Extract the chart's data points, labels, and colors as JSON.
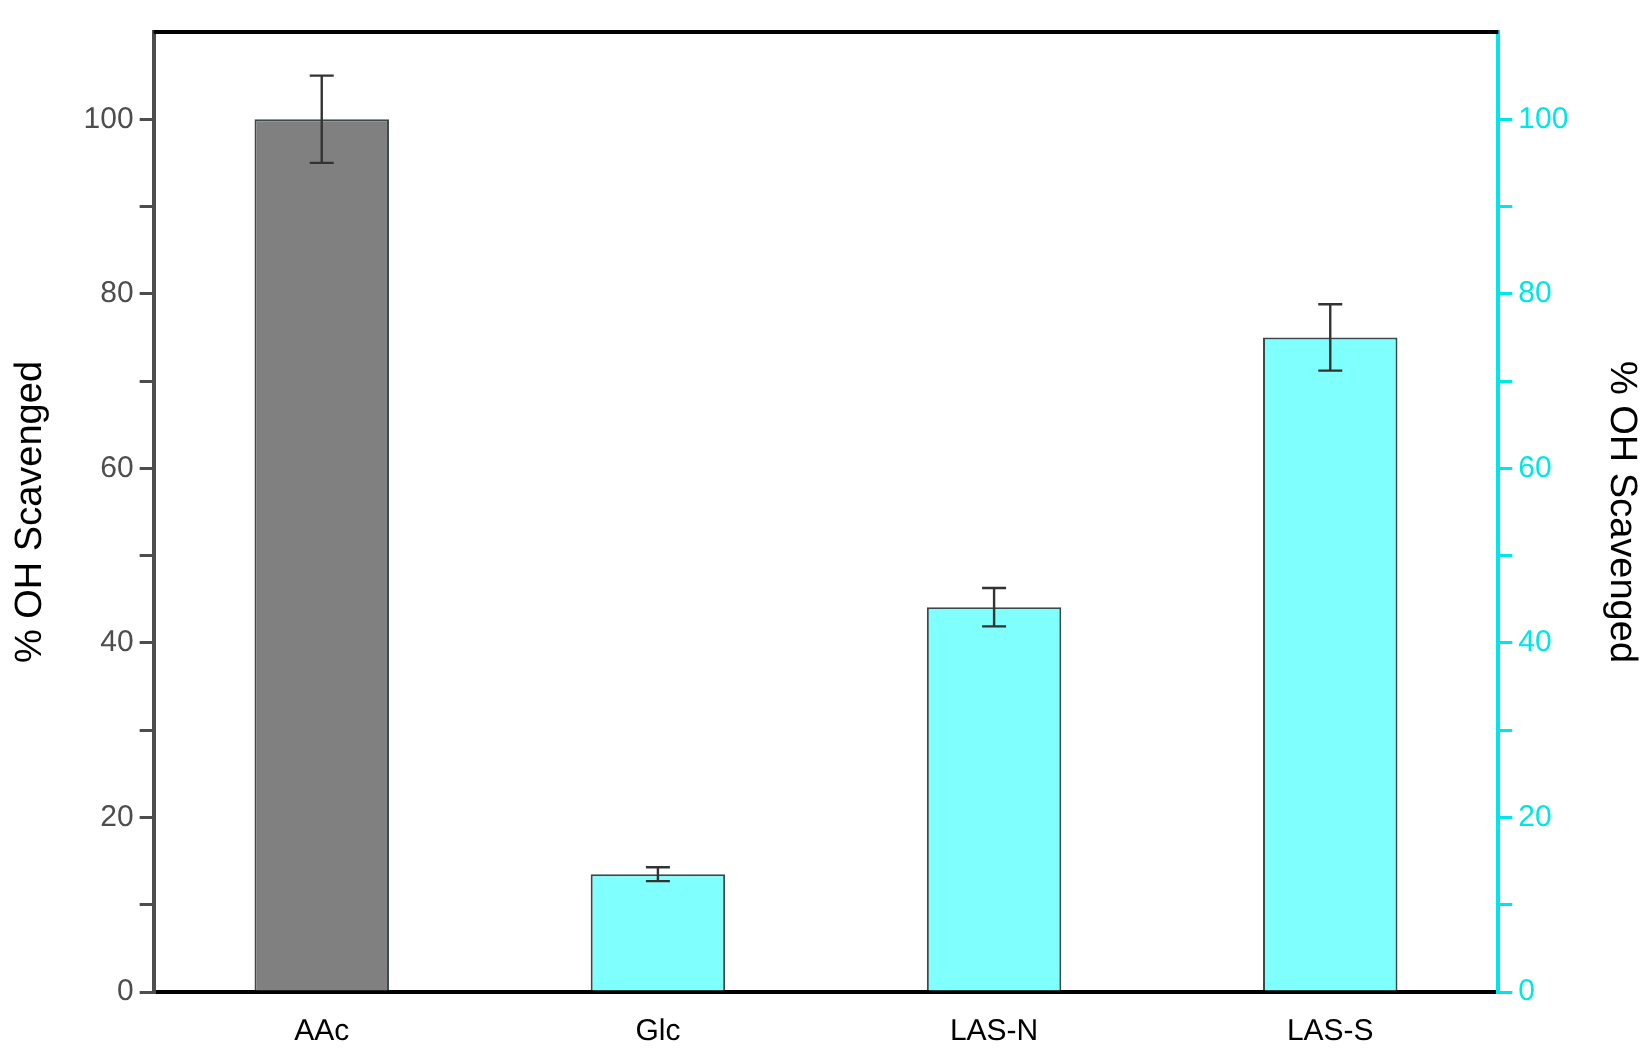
{
  "chart_data": {
    "type": "bar",
    "categories": [
      "AAc",
      "Glc",
      "LAS-N",
      "LAS-S"
    ],
    "series": [
      {
        "color": "#808080",
        "axis": "y",
        "values": [
          100,
          null,
          null,
          null
        ],
        "errors": [
          5,
          null,
          null,
          null
        ]
      },
      {
        "color": "#80ffff",
        "axis": "y2",
        "values": [
          null,
          13.5,
          44.1,
          75
        ],
        "errors": [
          null,
          0.8,
          2.2,
          3.8
        ]
      }
    ],
    "ylabel": "% OH Scavenged",
    "y2label": "% OH Scavenged",
    "ylim": [
      0,
      110
    ],
    "yticks": [
      0,
      {
        "value": 10,
        "label": null
      },
      20,
      {
        "value": 30,
        "label": null
      },
      40,
      {
        "value": 50,
        "label": null
      },
      60,
      {
        "value": 70,
        "label": null
      },
      80,
      {
        "value": 90,
        "label": null
      },
      100
    ],
    "y2lim": [
      0,
      110
    ],
    "y2ticks": [
      0,
      {
        "value": 10,
        "label": null
      },
      20,
      {
        "value": 30,
        "label": null
      },
      40,
      {
        "value": 50,
        "label": null
      },
      60,
      {
        "value": 70,
        "label": null
      },
      80,
      {
        "value": 90,
        "label": null
      },
      100
    ],
    "grid": false,
    "legend": false
  }
}
